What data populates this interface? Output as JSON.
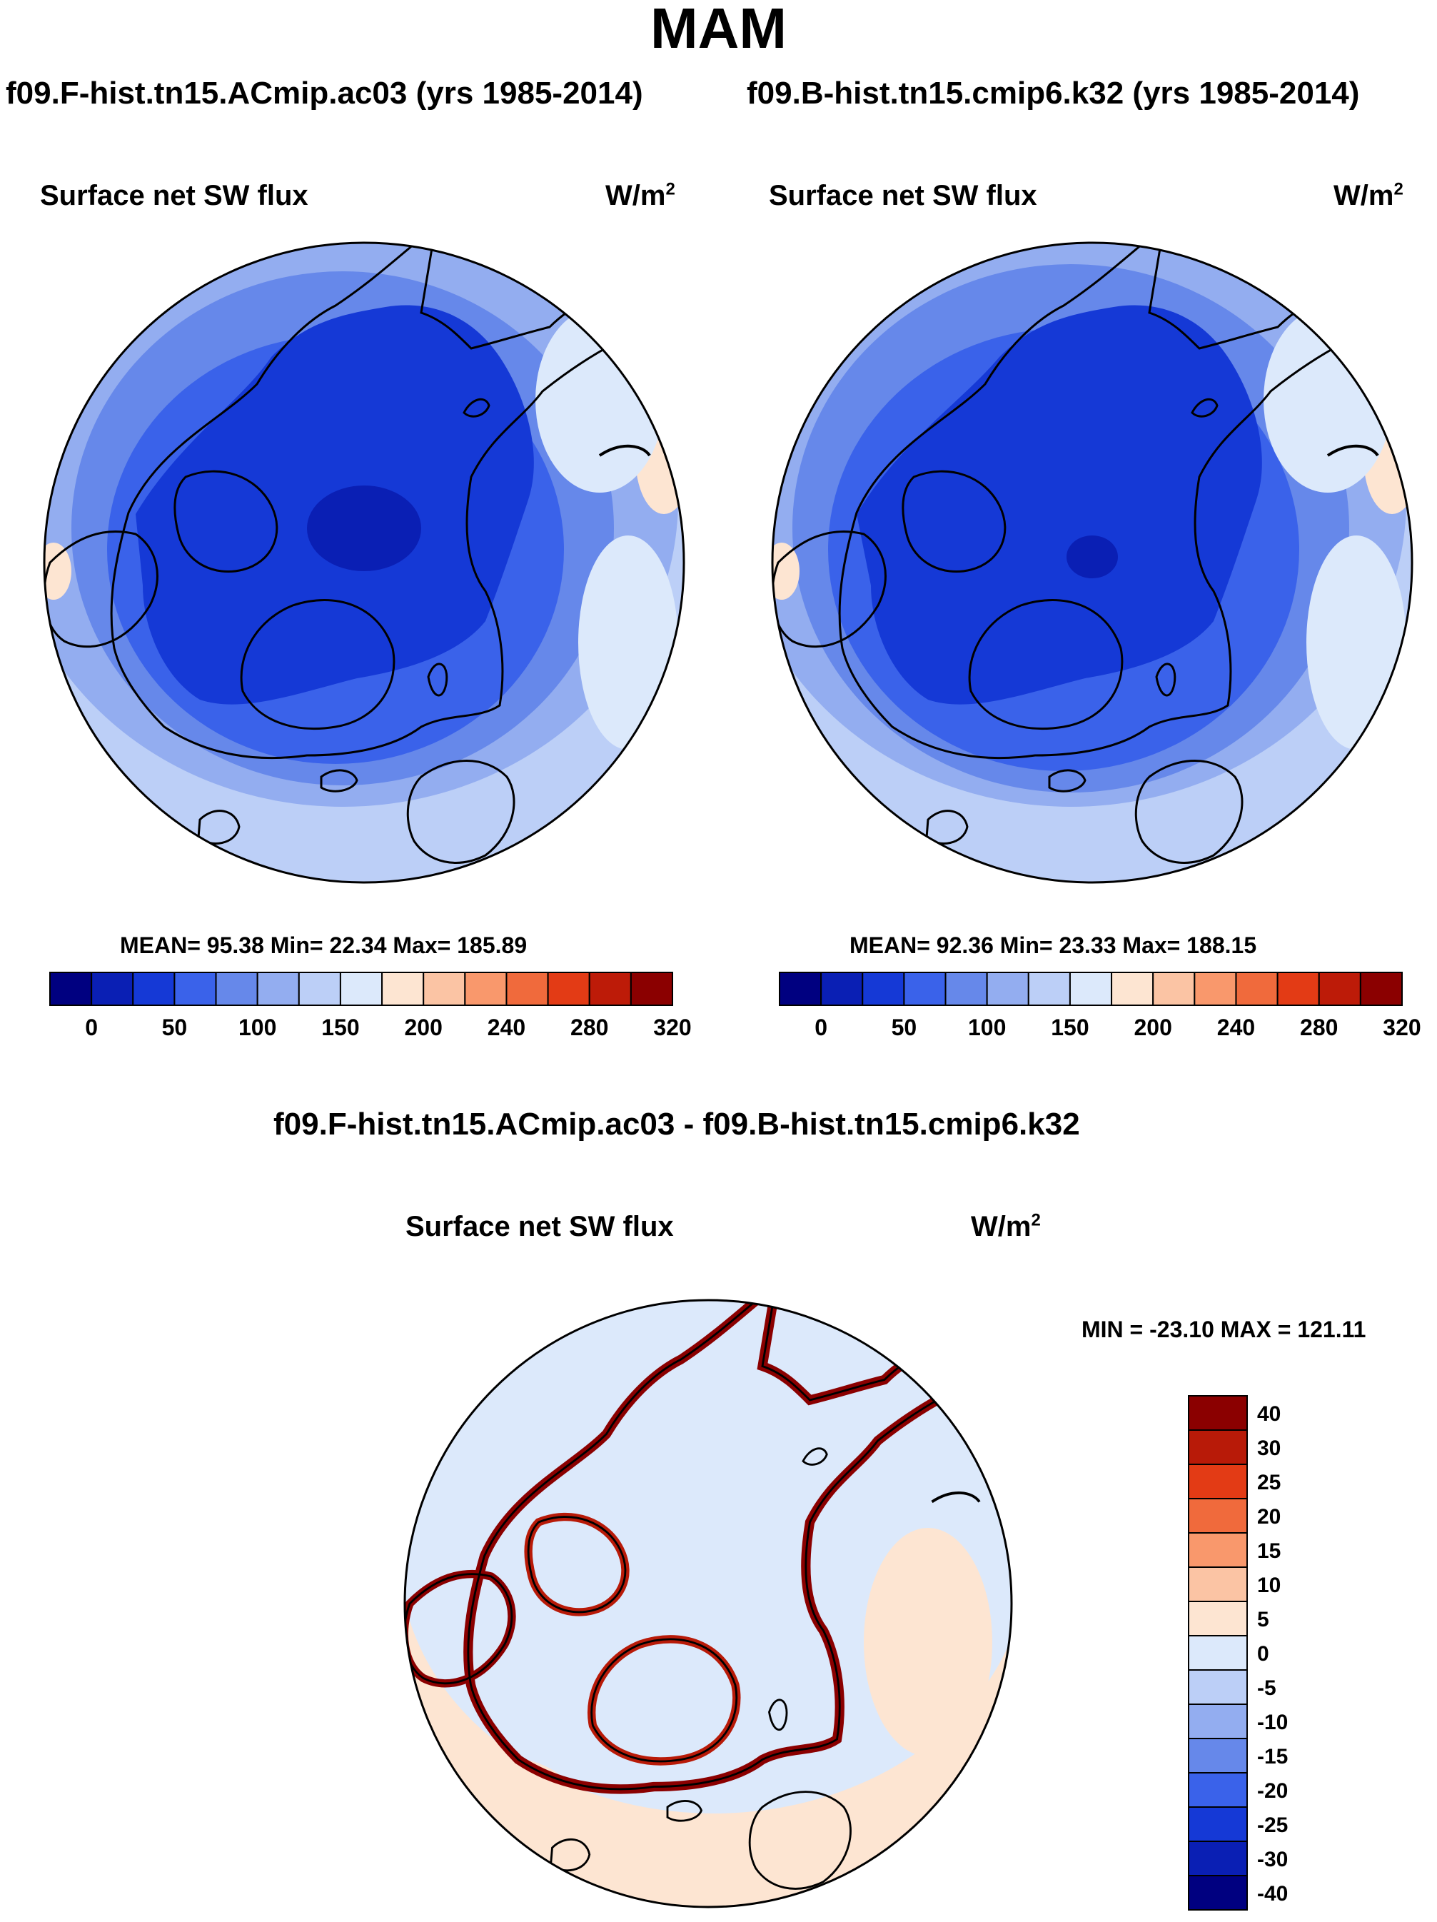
{
  "main_title": "MAM",
  "units": {
    "base": "W/m",
    "exp": "2"
  },
  "variable": "Surface net SW flux",
  "panels": [
    {
      "run": "f09.F-hist.tn15.ACmip.ac03 (yrs 1985-2014)",
      "stats": "MEAN=  95.38  Min=  22.34  Max= 185.89"
    },
    {
      "run": "f09.B-hist.tn15.cmip6.k32 (yrs 1985-2014)",
      "stats": "MEAN=  92.36  Min=  23.33  Max= 188.15"
    }
  ],
  "diff_panel": {
    "title": "f09.F-hist.tn15.ACmip.ac03 - f09.B-hist.tn15.cmip6.k32",
    "stats": "MIN = -23.10 MAX = 121.11"
  },
  "chart_data": [
    {
      "type": "heatmap",
      "projection": "north polar stereographic",
      "title": "Surface net SW flux",
      "subtitle": "f09.F-hist.tn15.ACmip.ac03 (yrs 1985-2014)",
      "units": "W/m2",
      "mean": 95.38,
      "min": 22.34,
      "max": 185.89,
      "colorbar": {
        "tick_labels": [
          "0",
          "50",
          "100",
          "150",
          "200",
          "240",
          "280",
          "320"
        ],
        "colors": [
          "#000080",
          "#0a1fb4",
          "#1539d6",
          "#3a62ea",
          "#6688ea",
          "#93adf0",
          "#bccff7",
          "#dce9fb",
          "#fde5d2",
          "#fbc4a4",
          "#f9986c",
          "#f06a3c",
          "#e33b15",
          "#bd1b08",
          "#8b0000"
        ]
      }
    },
    {
      "type": "heatmap",
      "projection": "north polar stereographic",
      "title": "Surface net SW flux",
      "subtitle": "f09.B-hist.tn15.cmip6.k32 (yrs 1985-2014)",
      "units": "W/m2",
      "mean": 92.36,
      "min": 23.33,
      "max": 188.15,
      "colorbar": {
        "tick_labels": [
          "0",
          "50",
          "100",
          "150",
          "200",
          "240",
          "280",
          "320"
        ],
        "colors": [
          "#000080",
          "#0a1fb4",
          "#1539d6",
          "#3a62ea",
          "#6688ea",
          "#93adf0",
          "#bccff7",
          "#dce9fb",
          "#fde5d2",
          "#fbc4a4",
          "#f9986c",
          "#f06a3c",
          "#e33b15",
          "#bd1b08",
          "#8b0000"
        ]
      }
    },
    {
      "type": "heatmap",
      "projection": "north polar stereographic",
      "title": "Surface net SW flux",
      "subtitle": "f09.F-hist.tn15.ACmip.ac03 - f09.B-hist.tn15.cmip6.k32",
      "units": "W/m2",
      "min": -23.1,
      "max": 121.11,
      "colorbar": {
        "tick_labels": [
          "40",
          "30",
          "25",
          "20",
          "15",
          "10",
          "5",
          "0",
          "-5",
          "-10",
          "-15",
          "-20",
          "-25",
          "-30",
          "-40"
        ],
        "colors": [
          "#8b0000",
          "#b81a08",
          "#e33b15",
          "#f06a3c",
          "#f9986c",
          "#fbc4a4",
          "#fde5d2",
          "#dce9fb",
          "#bccff7",
          "#93adf0",
          "#6688ea",
          "#3a62ea",
          "#1539d6",
          "#0a1fb4",
          "#000080"
        ]
      }
    }
  ]
}
